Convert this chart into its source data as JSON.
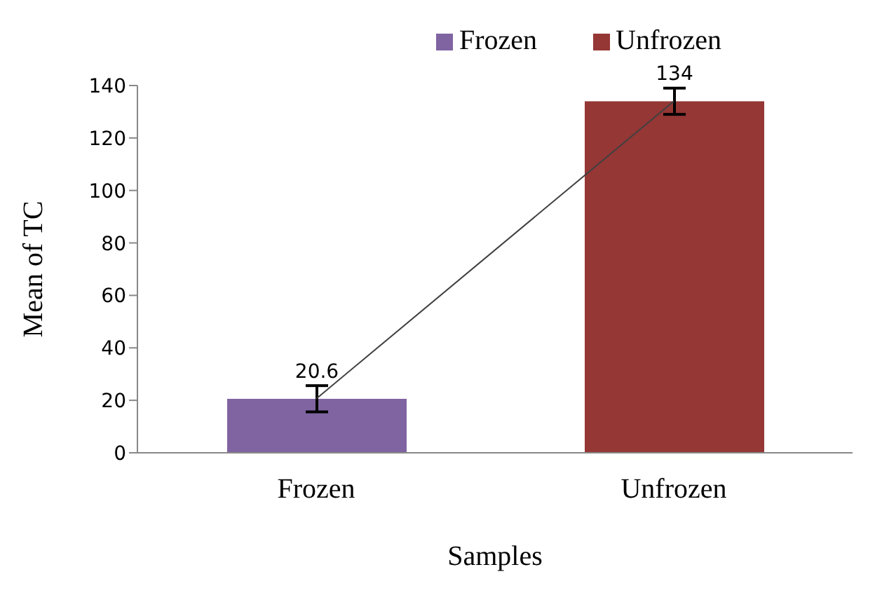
{
  "chart_data": {
    "type": "bar",
    "xlabel": "Samples",
    "ylabel": "Mean of TC",
    "categories": [
      "Frozen",
      "Unfrozen"
    ],
    "stacked": true,
    "series": [
      {
        "name": "Frozen",
        "color": "#8064a2",
        "values": [
          20.6,
          null
        ],
        "errors": [
          5,
          null
        ],
        "value_labels": [
          "20.6",
          null
        ]
      },
      {
        "name": "Unfrozen",
        "color": "#953735",
        "values": [
          null,
          134
        ],
        "errors": [
          null,
          5
        ],
        "value_labels": [
          null,
          "134"
        ]
      },
      {
        "type": "line",
        "color": "#404040",
        "values": [
          20.6,
          134
        ],
        "marker": "none"
      }
    ],
    "ylim": [
      0,
      140
    ],
    "yticks": [
      0,
      20,
      40,
      60,
      80,
      100,
      120,
      140
    ],
    "grid": false,
    "legend": "top"
  }
}
